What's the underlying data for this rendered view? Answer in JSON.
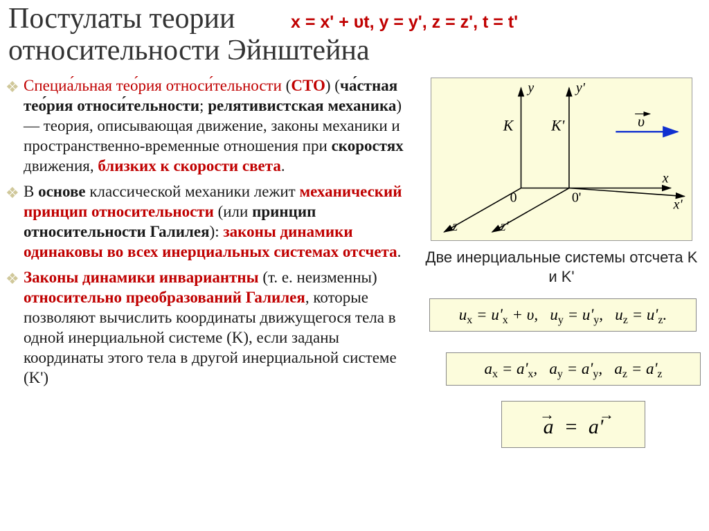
{
  "title": "Постулаты теории относительности Эйнштейна",
  "top_formula": "x = x' + υt, y = y', z = z', t = t'",
  "bullets": [
    {
      "parts": [
        {
          "t": "Специа́льная тео́рия относи́тельности",
          "cls": "red"
        },
        {
          "t": " (",
          "cls": "black"
        },
        {
          "t": "СТО",
          "cls": "red",
          "b": true
        },
        {
          "t": ") (",
          "cls": "black"
        },
        {
          "t": "ча́стная тео́рия относи́тельности",
          "cls": "black",
          "b": true
        },
        {
          "t": "; ",
          "cls": "black"
        },
        {
          "t": "релятивистская механика",
          "cls": "black",
          "b": true
        },
        {
          "t": ") — теория, описывающая движение, законы механики и пространственно-временные отношения при ",
          "cls": "black"
        },
        {
          "t": "скоростях",
          "cls": "black",
          "b": true
        },
        {
          "t": " движения, ",
          "cls": "black"
        },
        {
          "t": "близких к скорости света",
          "cls": "red",
          "b": true
        },
        {
          "t": ".",
          "cls": "black"
        }
      ]
    },
    {
      "parts": [
        {
          "t": "В ",
          "cls": "black"
        },
        {
          "t": "основе",
          "cls": "black",
          "b": true
        },
        {
          "t": " классической механики лежит ",
          "cls": "black"
        },
        {
          "t": "механический принцип относительности",
          "cls": "red",
          "b": true
        },
        {
          "t": " (или ",
          "cls": "black"
        },
        {
          "t": "принцип относительности Галилея",
          "cls": "black",
          "b": true
        },
        {
          "t": "): ",
          "cls": "black"
        },
        {
          "t": "законы динамики одинаковы во всех инерциальных системах отсчета",
          "cls": "red",
          "b": true
        },
        {
          "t": ".",
          "cls": "black"
        }
      ]
    },
    {
      "parts": [
        {
          "t": "Законы динамики инвариантны",
          "cls": "red",
          "b": true
        },
        {
          "t": " (т. е. неизменны) ",
          "cls": "black"
        },
        {
          "t": "относительно преобразований Галилея",
          "cls": "red",
          "b": true
        },
        {
          "t": ", которые позволяют вычислить координаты движущегося тела в одной инерциальной системе (K), если заданы координаты этого тела в другой инерциальной системе (K')",
          "cls": "black"
        }
      ]
    }
  ],
  "diagram": {
    "bg": "#fcfcdc",
    "axis_color": "#000000",
    "vec_color": "#1030d0",
    "labels": {
      "y": "y",
      "yp": "y'",
      "K": "K",
      "Kp": "K'",
      "x": "x",
      "xp": "x'",
      "z": "z",
      "zp": "z'",
      "O": "0",
      "Op": "0'",
      "v": "υ"
    }
  },
  "caption": "Две инерциальные системы отсчета K и K'",
  "formula_u": "uₓ = u'ₓ + υ,   u_y = u'_y,   u_z = u'_z.",
  "formula_a": "aₓ = a'ₓ,   a_y = a'_y,   a_z = a'_z",
  "formula_vec": "a = a'"
}
